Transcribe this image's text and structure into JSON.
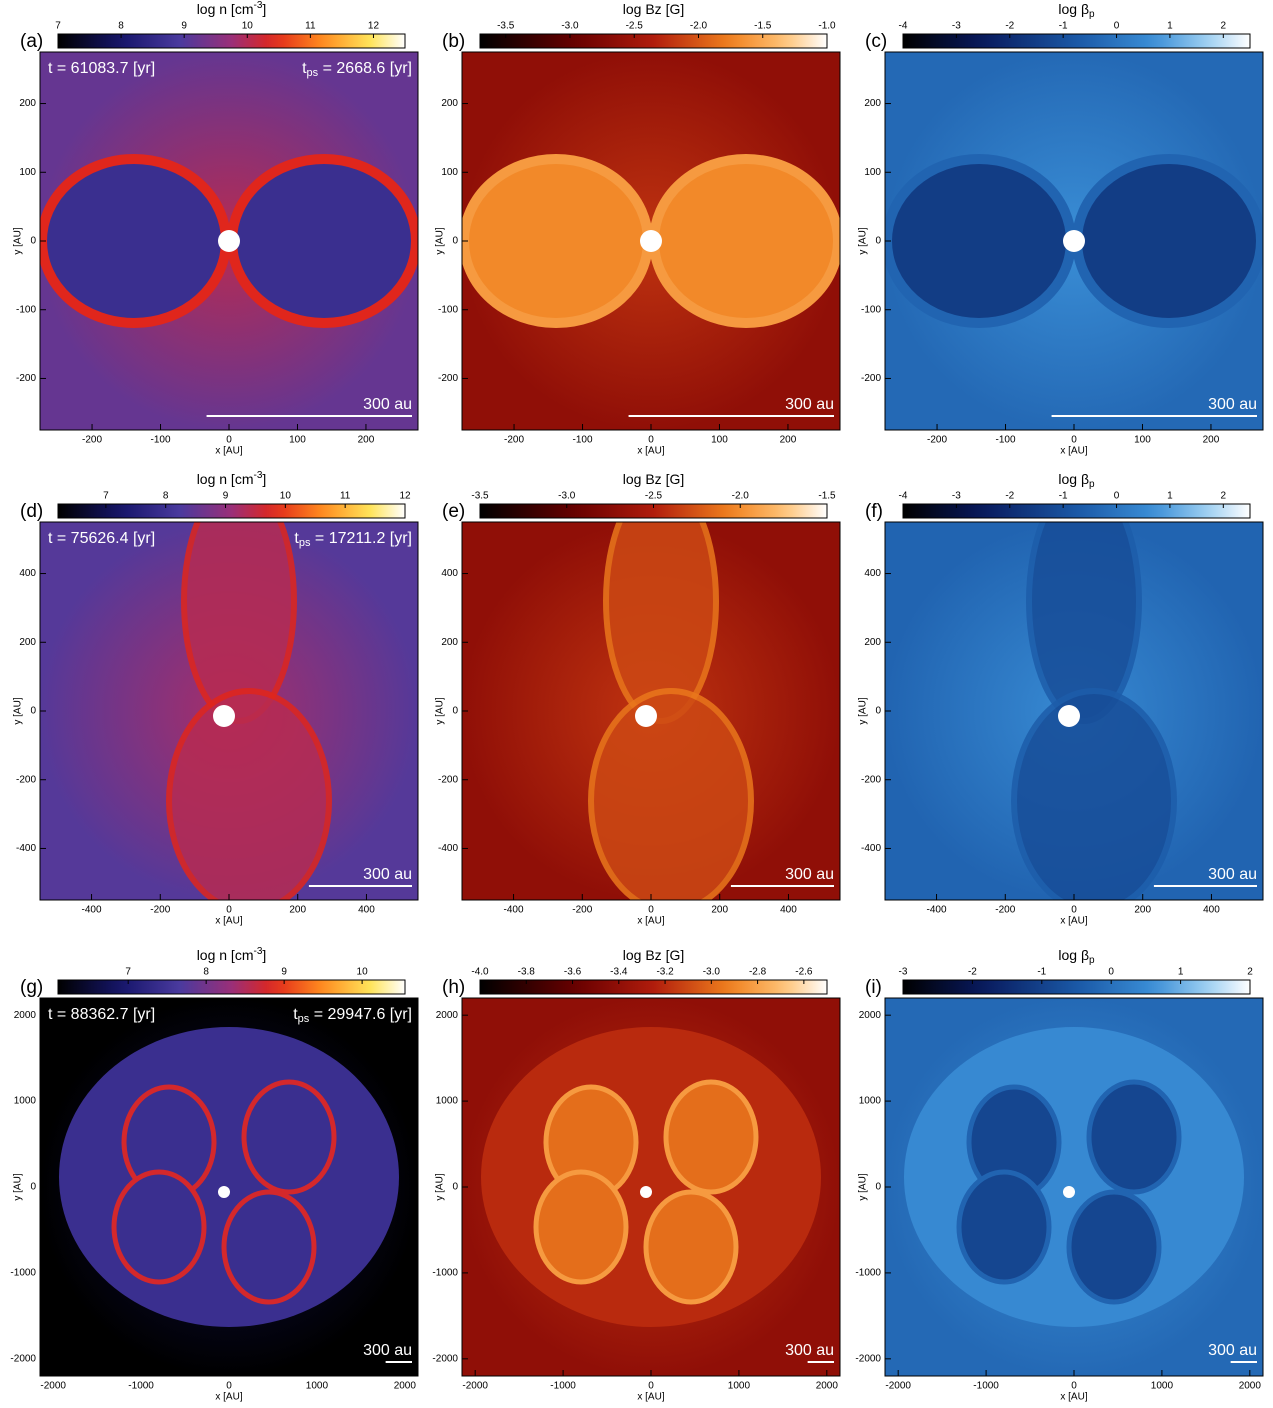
{
  "panels": [
    {
      "label": "(a)",
      "colorbar": {
        "title": [
          "log n [cm",
          "-3",
          "]"
        ],
        "colormap": "density",
        "lim": [
          7,
          12.5
        ],
        "ticks": [
          7,
          8,
          9,
          10,
          11,
          12
        ]
      },
      "time": "t = 61083.7 [yr]",
      "tps": [
        "t",
        "ps",
        " = 2668.6 [yr]"
      ],
      "xlabel": "x [AU]",
      "ylabel": "y [AU]",
      "xlim": [
        -276,
        276
      ],
      "ylim": [
        -275,
        275
      ],
      "xticks": [
        -200,
        -100,
        0,
        100,
        200
      ],
      "yticks": [
        -200,
        -100,
        0,
        100,
        200
      ],
      "scale_bar": {
        "length": 300,
        "label": "300 au"
      }
    },
    {
      "label": "(b)",
      "colorbar": {
        "title": [
          "log Bz [G]"
        ],
        "colormap": "field",
        "lim": [
          -3.7,
          -1.0
        ],
        "ticks": [
          -3.5,
          {
            "value": -3,
            "label": "-3.0"
          },
          -2.5,
          {
            "value": -2,
            "label": "-2.0"
          },
          -1.5,
          {
            "value": -1,
            "label": "-1.0"
          }
        ]
      },
      "xlabel": "x [AU]",
      "ylabel": "y [AU]",
      "xlim": [
        -276,
        276
      ],
      "ylim": [
        -275,
        275
      ],
      "xticks": [
        -200,
        -100,
        0,
        100,
        200
      ],
      "yticks": [
        -200,
        -100,
        0,
        100,
        200
      ],
      "scale_bar": {
        "length": 300,
        "label": "300 au"
      }
    },
    {
      "label": "(c)",
      "colorbar": {
        "title": [
          "log β",
          "p"
        ],
        "colormap": "beta",
        "lim": [
          -4,
          2.5
        ],
        "ticks": [
          -4,
          -3,
          -2,
          -1,
          0,
          1,
          2
        ]
      },
      "xlabel": "x [AU]",
      "ylabel": "y [AU]",
      "xlim": [
        -276,
        276
      ],
      "ylim": [
        -275,
        275
      ],
      "xticks": [
        -200,
        -100,
        0,
        100,
        200
      ],
      "yticks": [
        -200,
        -100,
        0,
        100,
        200
      ],
      "scale_bar": {
        "length": 300,
        "label": "300 au"
      }
    },
    {
      "label": "(d)",
      "colorbar": {
        "title": [
          "log n [cm",
          "-3",
          "]"
        ],
        "colormap": "density",
        "lim": [
          6.2,
          12
        ],
        "ticks": [
          7,
          8,
          9,
          10,
          11,
          12
        ]
      },
      "time": "t = 75626.4 [yr]",
      "tps": [
        "t",
        "ps",
        " = 17211.2 [yr]"
      ],
      "xlabel": "x [AU]",
      "ylabel": "y [AU]",
      "xlim": [
        -550,
        550
      ],
      "ylim": [
        -550,
        550
      ],
      "xticks": [
        -400,
        -200,
        0,
        200,
        400
      ],
      "yticks": [
        -400,
        -200,
        0,
        200,
        400
      ],
      "scale_bar": {
        "length": 300,
        "label": "300 au"
      }
    },
    {
      "label": "(e)",
      "colorbar": {
        "title": [
          "log Bz [G]"
        ],
        "colormap": "field",
        "lim": [
          -3.5,
          -1.5
        ],
        "ticks": [
          -3.5,
          {
            "value": -3,
            "label": "-3.0"
          },
          -2.5,
          {
            "value": -2,
            "label": "-2.0"
          },
          -1.5
        ]
      },
      "xlabel": "x [AU]",
      "ylabel": "y [AU]",
      "xlim": [
        -550,
        550
      ],
      "ylim": [
        -550,
        550
      ],
      "xticks": [
        -400,
        -200,
        0,
        200,
        400
      ],
      "yticks": [
        -400,
        -200,
        0,
        200,
        400
      ],
      "scale_bar": {
        "length": 300,
        "label": "300 au"
      }
    },
    {
      "label": "(f)",
      "colorbar": {
        "title": [
          "log β",
          "p"
        ],
        "colormap": "beta",
        "lim": [
          -4,
          2.5
        ],
        "ticks": [
          -4,
          -3,
          -2,
          -1,
          0,
          1,
          2
        ]
      },
      "xlabel": "x [AU]",
      "ylabel": "y [AU]",
      "xlim": [
        -550,
        550
      ],
      "ylim": [
        -550,
        550
      ],
      "xticks": [
        -400,
        -200,
        0,
        200,
        400
      ],
      "yticks": [
        -400,
        -200,
        0,
        200,
        400
      ],
      "scale_bar": {
        "length": 300,
        "label": "300 au"
      }
    },
    {
      "label": "(g)",
      "colorbar": {
        "title": [
          "log n [cm",
          "-3",
          "]"
        ],
        "colormap": "density",
        "lim": [
          6.1,
          10.55
        ],
        "ticks": [
          7,
          8,
          9,
          10
        ]
      },
      "time": "t = 88362.7 [yr]",
      "tps": [
        "t",
        "ps",
        " = 29947.6 [yr]"
      ],
      "xlabel": "x [AU]",
      "ylabel": "y [AU]",
      "xlim": [
        -2150,
        2150
      ],
      "ylim": [
        -2200,
        2200
      ],
      "xticks": [
        -2000,
        -1000,
        0,
        1000,
        2000
      ],
      "yticks": [
        -2000,
        -1000,
        0,
        1000,
        2000
      ],
      "scale_bar": {
        "length": 300,
        "label": "300 au"
      }
    },
    {
      "label": "(h)",
      "colorbar": {
        "title": [
          "log Bz [G]"
        ],
        "colormap": "field",
        "lim": [
          -4.0,
          -2.5
        ],
        "ticks": [
          {
            "value": -4,
            "label": "-4.0"
          },
          -3.8,
          -3.6,
          -3.4,
          -3.2,
          {
            "value": -3,
            "label": "-3.0"
          },
          -2.8,
          -2.6
        ]
      },
      "xlabel": "x [AU]",
      "ylabel": "y [AU]",
      "xlim": [
        -2150,
        2150
      ],
      "ylim": [
        -2200,
        2200
      ],
      "xticks": [
        -2000,
        -1000,
        0,
        1000,
        2000
      ],
      "yticks": [
        -2000,
        -1000,
        0,
        1000,
        2000
      ],
      "scale_bar": {
        "length": 300,
        "label": "300 au"
      }
    },
    {
      "label": "(i)",
      "colorbar": {
        "title": [
          "log β",
          "p"
        ],
        "colormap": "beta",
        "lim": [
          -3,
          2
        ],
        "ticks": [
          -3,
          -2,
          -1,
          0,
          1,
          2
        ]
      },
      "xlabel": "x [AU]",
      "ylabel": "y [AU]",
      "xlim": [
        -2150,
        2150
      ],
      "ylim": [
        -2200,
        2200
      ],
      "xticks": [
        -2000,
        -1000,
        0,
        1000,
        2000
      ],
      "yticks": [
        -2000,
        -1000,
        0,
        1000,
        2000
      ],
      "scale_bar": {
        "length": 300,
        "label": "300 au"
      }
    }
  ]
}
